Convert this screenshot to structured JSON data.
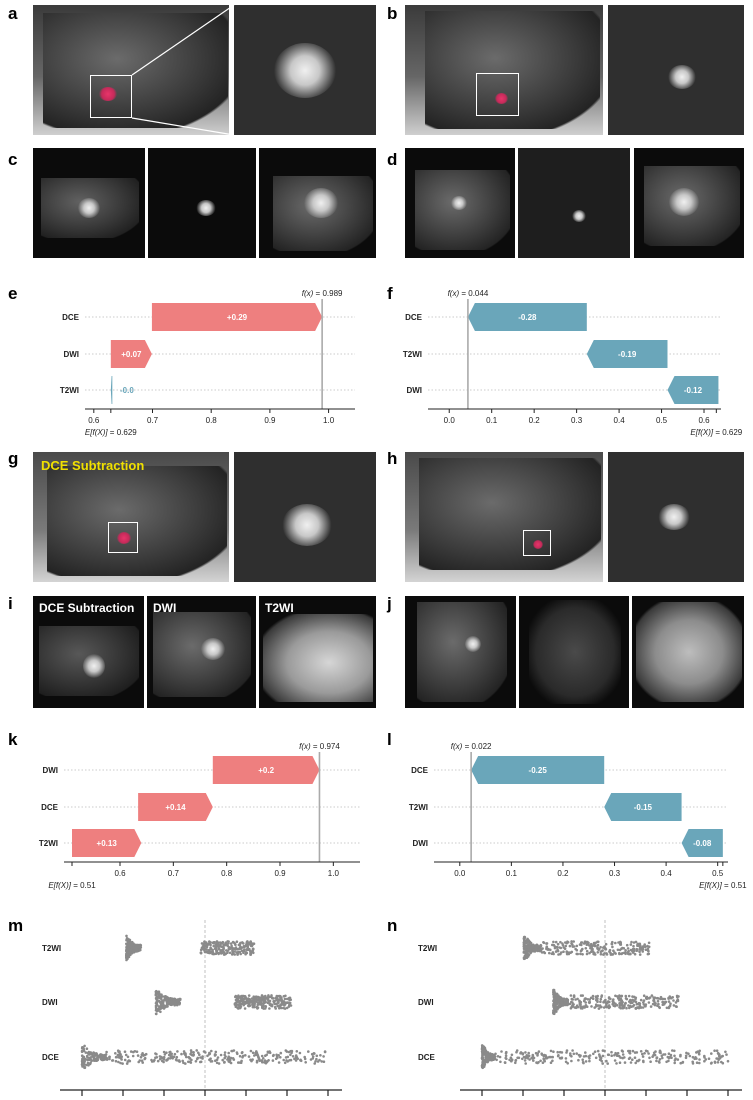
{
  "panel_labels": [
    "a",
    "b",
    "c",
    "d",
    "e",
    "f",
    "g",
    "h",
    "i",
    "j",
    "k",
    "l",
    "m",
    "n"
  ],
  "image_titles": {
    "g_overlay": "DCE Subtraction",
    "i_1": "DCE Subtraction",
    "i_2": "DWI",
    "i_3": "T2WI"
  },
  "colors": {
    "positive": "#ee7f7f",
    "negative": "#6aa6ba",
    "swarm": "#8a8a8a"
  },
  "chart_data": [
    {
      "panel": "e",
      "type": "bar",
      "chart_kind": "waterfall",
      "features": [
        "DCE",
        "DWI",
        "T2WI"
      ],
      "contributions": [
        0.29,
        0.07,
        -0.0
      ],
      "contribution_labels": [
        "+0.29",
        "+0.07",
        "-0.0"
      ],
      "bars": [
        [
          0.699,
          0.989
        ],
        [
          0.629,
          0.699
        ],
        [
          0.629,
          0.631
        ]
      ],
      "fx_label": "f(x)",
      "fx_value": "= 0.989",
      "fx": 0.989,
      "ex_label": "E[f(X)]",
      "ex_value": "= 0.629",
      "ex": 0.629,
      "xlim": [
        0.585,
        1.045
      ],
      "ticks": [
        0.6,
        0.7,
        0.8,
        0.9,
        1.0
      ],
      "tick_labels": [
        "0.6",
        "0.7",
        "0.8",
        "0.9",
        "1.0"
      ]
    },
    {
      "panel": "f",
      "type": "bar",
      "chart_kind": "waterfall",
      "features": [
        "DCE",
        "T2WI",
        "DWI"
      ],
      "contributions": [
        -0.28,
        -0.19,
        -0.12
      ],
      "contribution_labels": [
        "-0.28",
        "-0.19",
        "-0.12"
      ],
      "bars": [
        [
          0.044,
          0.324
        ],
        [
          0.324,
          0.514
        ],
        [
          0.514,
          0.634
        ]
      ],
      "fx_label": "f(x)",
      "fx_value": "= 0.044",
      "fx": 0.044,
      "ex_label": "E[f(X)]",
      "ex_value": "= 0.629",
      "ex": 0.629,
      "xlim": [
        -0.05,
        0.64
      ],
      "ticks": [
        0.0,
        0.1,
        0.2,
        0.3,
        0.4,
        0.5,
        0.6
      ],
      "tick_labels": [
        "0.0",
        "0.1",
        "0.2",
        "0.3",
        "0.4",
        "0.5",
        "0.6"
      ]
    },
    {
      "panel": "k",
      "type": "bar",
      "chart_kind": "waterfall",
      "features": [
        "DWI",
        "DCE",
        "T2WI"
      ],
      "contributions": [
        0.2,
        0.14,
        0.13
      ],
      "contribution_labels": [
        "+0.2",
        "+0.14",
        "+0.13"
      ],
      "bars": [
        [
          0.774,
          0.974
        ],
        [
          0.634,
          0.774
        ],
        [
          0.51,
          0.64
        ]
      ],
      "fx_label": "f(x)",
      "fx_value": "= 0.974",
      "fx": 0.974,
      "ex_label": "E[f(X)]",
      "ex_value": "= 0.51",
      "ex": 0.51,
      "xlim": [
        0.495,
        1.05
      ],
      "ticks": [
        0.6,
        0.7,
        0.8,
        0.9,
        1.0
      ],
      "tick_labels": [
        "0.6",
        "0.7",
        "0.8",
        "0.9",
        "1.0"
      ]
    },
    {
      "panel": "l",
      "type": "bar",
      "chart_kind": "waterfall",
      "features": [
        "DCE",
        "T2WI",
        "DWI"
      ],
      "contributions": [
        -0.25,
        -0.15,
        -0.08
      ],
      "contribution_labels": [
        "-0.25",
        "-0.15",
        "-0.08"
      ],
      "bars": [
        [
          0.022,
          0.28
        ],
        [
          0.28,
          0.43
        ],
        [
          0.43,
          0.51
        ]
      ],
      "fx_label": "f(x)",
      "fx_value": "= 0.022",
      "fx": 0.022,
      "ex_label": "E[f(X)]",
      "ex_value": "= 0.51",
      "ex": 0.51,
      "xlim": [
        -0.05,
        0.52
      ],
      "ticks": [
        0.0,
        0.1,
        0.2,
        0.3,
        0.4,
        0.5
      ],
      "tick_labels": [
        "0.0",
        "0.1",
        "0.2",
        "0.3",
        "0.4",
        "0.5"
      ]
    },
    {
      "panel": "m",
      "type": "scatter",
      "chart_kind": "beeswarm",
      "features": [
        "T2WI",
        "DWI",
        "DCE"
      ],
      "series": [
        {
          "feature": "T2WI",
          "clusters": [
            [
              0.18,
              0.24
            ],
            [
              0.48,
              0.7
            ]
          ],
          "weights": [
            0.45,
            0.55
          ]
        },
        {
          "feature": "DWI",
          "clusters": [
            [
              0.3,
              0.4
            ],
            [
              0.62,
              0.85
            ]
          ],
          "weights": [
            0.4,
            0.6
          ]
        },
        {
          "feature": "DCE",
          "clusters": [
            [
              0.0,
              0.1
            ],
            [
              0.1,
              1.0
            ]
          ],
          "weights": [
            0.3,
            0.7
          ]
        }
      ],
      "ref_line": 0.5
    },
    {
      "panel": "n",
      "type": "scatter",
      "chart_kind": "beeswarm",
      "features": [
        "T2WI",
        "DWI",
        "DCE"
      ],
      "series": [
        {
          "feature": "T2WI",
          "clusters": [
            [
              0.17,
              0.24
            ],
            [
              0.24,
              0.68
            ]
          ],
          "weights": [
            0.45,
            0.55
          ]
        },
        {
          "feature": "DWI",
          "clusters": [
            [
              0.29,
              0.35
            ],
            [
              0.35,
              0.8
            ]
          ],
          "weights": [
            0.4,
            0.6
          ]
        },
        {
          "feature": "DCE",
          "clusters": [
            [
              0.0,
              0.05
            ],
            [
              0.05,
              1.0
            ]
          ],
          "weights": [
            0.35,
            0.65
          ]
        }
      ],
      "ref_line": 0.5
    }
  ]
}
